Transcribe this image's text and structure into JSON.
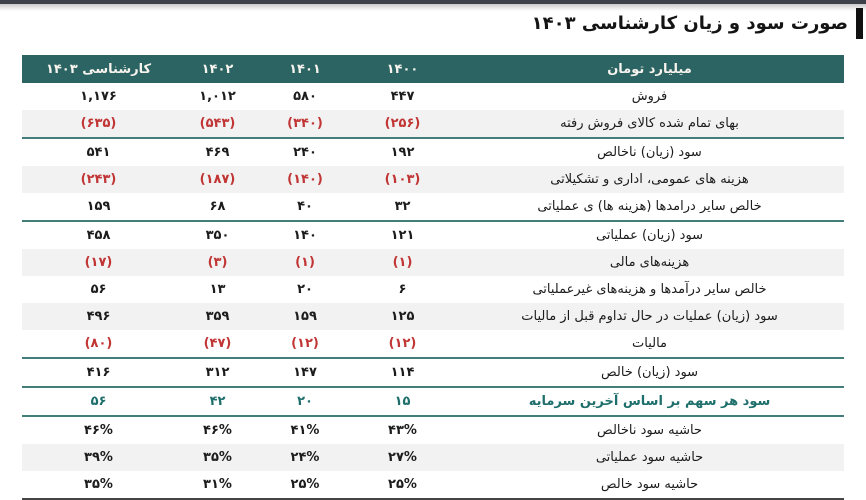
{
  "page": {
    "title": "صورت سود و زیان کارشناسی ۱۴۰۳"
  },
  "colors": {
    "header_bg": "#2b6462",
    "separator_teal": "#437e7a",
    "negative_red": "#c13535",
    "eps_teal": "#1e6f6b",
    "stripe_gray": "#f2f2f2",
    "top_bar": "#3d424a"
  },
  "table": {
    "unit_header": "میلیارد تومان",
    "columns": [
      {
        "key": "y1400",
        "label": "۱۴۰۰"
      },
      {
        "key": "y1401",
        "label": "۱۴۰۱"
      },
      {
        "key": "y1402",
        "label": "۱۴۰۲"
      },
      {
        "key": "y1403",
        "label": "کارشناسی ۱۴۰۳"
      }
    ],
    "rows": [
      {
        "label": "فروش",
        "values": {
          "y1400": "۴۴۷",
          "y1401": "۵۸۰",
          "y1402": "۱,۰۱۲",
          "y1403": "۱,۱۷۶"
        },
        "negative": false,
        "stripe": false,
        "emphasis": false,
        "separator_after": false
      },
      {
        "label": "بهای تمام شده کالای فروش رفته",
        "values": {
          "y1400": "(۲۵۶)",
          "y1401": "(۳۴۰)",
          "y1402": "(۵۴۳)",
          "y1403": "(۶۳۵)"
        },
        "negative": true,
        "stripe": true,
        "emphasis": false,
        "separator_after": true
      },
      {
        "label": "سود (زیان) ناخالص",
        "values": {
          "y1400": "۱۹۲",
          "y1401": "۲۴۰",
          "y1402": "۴۶۹",
          "y1403": "۵۴۱"
        },
        "negative": false,
        "stripe": false,
        "emphasis": false,
        "separator_after": false
      },
      {
        "label": "هزینه های عمومی، اداری و تشکیلاتی",
        "values": {
          "y1400": "(۱۰۳)",
          "y1401": "(۱۴۰)",
          "y1402": "(۱۸۷)",
          "y1403": "(۲۴۳)"
        },
        "negative": true,
        "stripe": true,
        "emphasis": false,
        "separator_after": false
      },
      {
        "label": "خالص سایر درامدها (هزینه ها) ی عملیاتی",
        "values": {
          "y1400": "۳۲",
          "y1401": "۴۰",
          "y1402": "۶۸",
          "y1403": "۱۵۹"
        },
        "negative": false,
        "stripe": false,
        "emphasis": false,
        "separator_after": true
      },
      {
        "label": "سود (زیان) عملیاتی",
        "values": {
          "y1400": "۱۲۱",
          "y1401": "۱۴۰",
          "y1402": "۳۵۰",
          "y1403": "۴۵۸"
        },
        "negative": false,
        "stripe": false,
        "emphasis": false,
        "separator_after": false
      },
      {
        "label": "هزینه‌های مالی",
        "values": {
          "y1400": "(۱)",
          "y1401": "(۱)",
          "y1402": "(۳)",
          "y1403": "(۱۷)"
        },
        "negative": true,
        "stripe": true,
        "emphasis": false,
        "separator_after": false
      },
      {
        "label": "خالص سایر درآمدها و هزینه‌های غیرعملیاتی",
        "values": {
          "y1400": "۶",
          "y1401": "۲۰",
          "y1402": "۱۳",
          "y1403": "۵۶"
        },
        "negative": false,
        "stripe": false,
        "emphasis": false,
        "separator_after": false
      },
      {
        "label": "سود (زیان) عملیات در حال تداوم قبل از مالیات",
        "values": {
          "y1400": "۱۲۵",
          "y1401": "۱۵۹",
          "y1402": "۳۵۹",
          "y1403": "۴۹۶"
        },
        "negative": false,
        "stripe": true,
        "emphasis": false,
        "separator_after": false
      },
      {
        "label": "مالیات",
        "values": {
          "y1400": "(۱۲)",
          "y1401": "(۱۲)",
          "y1402": "(۴۷)",
          "y1403": "(۸۰)"
        },
        "negative": true,
        "stripe": false,
        "emphasis": false,
        "separator_after": true
      },
      {
        "label": "سود (زیان) خالص",
        "values": {
          "y1400": "۱۱۴",
          "y1401": "۱۴۷",
          "y1402": "۳۱۲",
          "y1403": "۴۱۶"
        },
        "negative": false,
        "stripe": false,
        "emphasis": false,
        "separator_after": true
      },
      {
        "label": "سود هر سهم بر اساس آخرین سرمایه",
        "values": {
          "y1400": "۱۵",
          "y1401": "۲۰",
          "y1402": "۴۲",
          "y1403": "۵۶"
        },
        "negative": false,
        "stripe": false,
        "emphasis": true,
        "separator_after": true
      },
      {
        "label": "حاشیه سود ناخالص",
        "values": {
          "y1400": "۴۳%",
          "y1401": "۴۱%",
          "y1402": "۴۶%",
          "y1403": "۴۶%"
        },
        "negative": false,
        "stripe": false,
        "emphasis": false,
        "separator_after": false
      },
      {
        "label": "حاشیه سود عملیاتی",
        "values": {
          "y1400": "۲۷%",
          "y1401": "۲۴%",
          "y1402": "۳۵%",
          "y1403": "۳۹%"
        },
        "negative": false,
        "stripe": true,
        "emphasis": false,
        "separator_after": false
      },
      {
        "label": "حاشیه سود خالص",
        "values": {
          "y1400": "۲۵%",
          "y1401": "۲۵%",
          "y1402": "۳۱%",
          "y1403": "۳۵%"
        },
        "negative": false,
        "stripe": false,
        "emphasis": false,
        "separator_after": false
      }
    ]
  }
}
